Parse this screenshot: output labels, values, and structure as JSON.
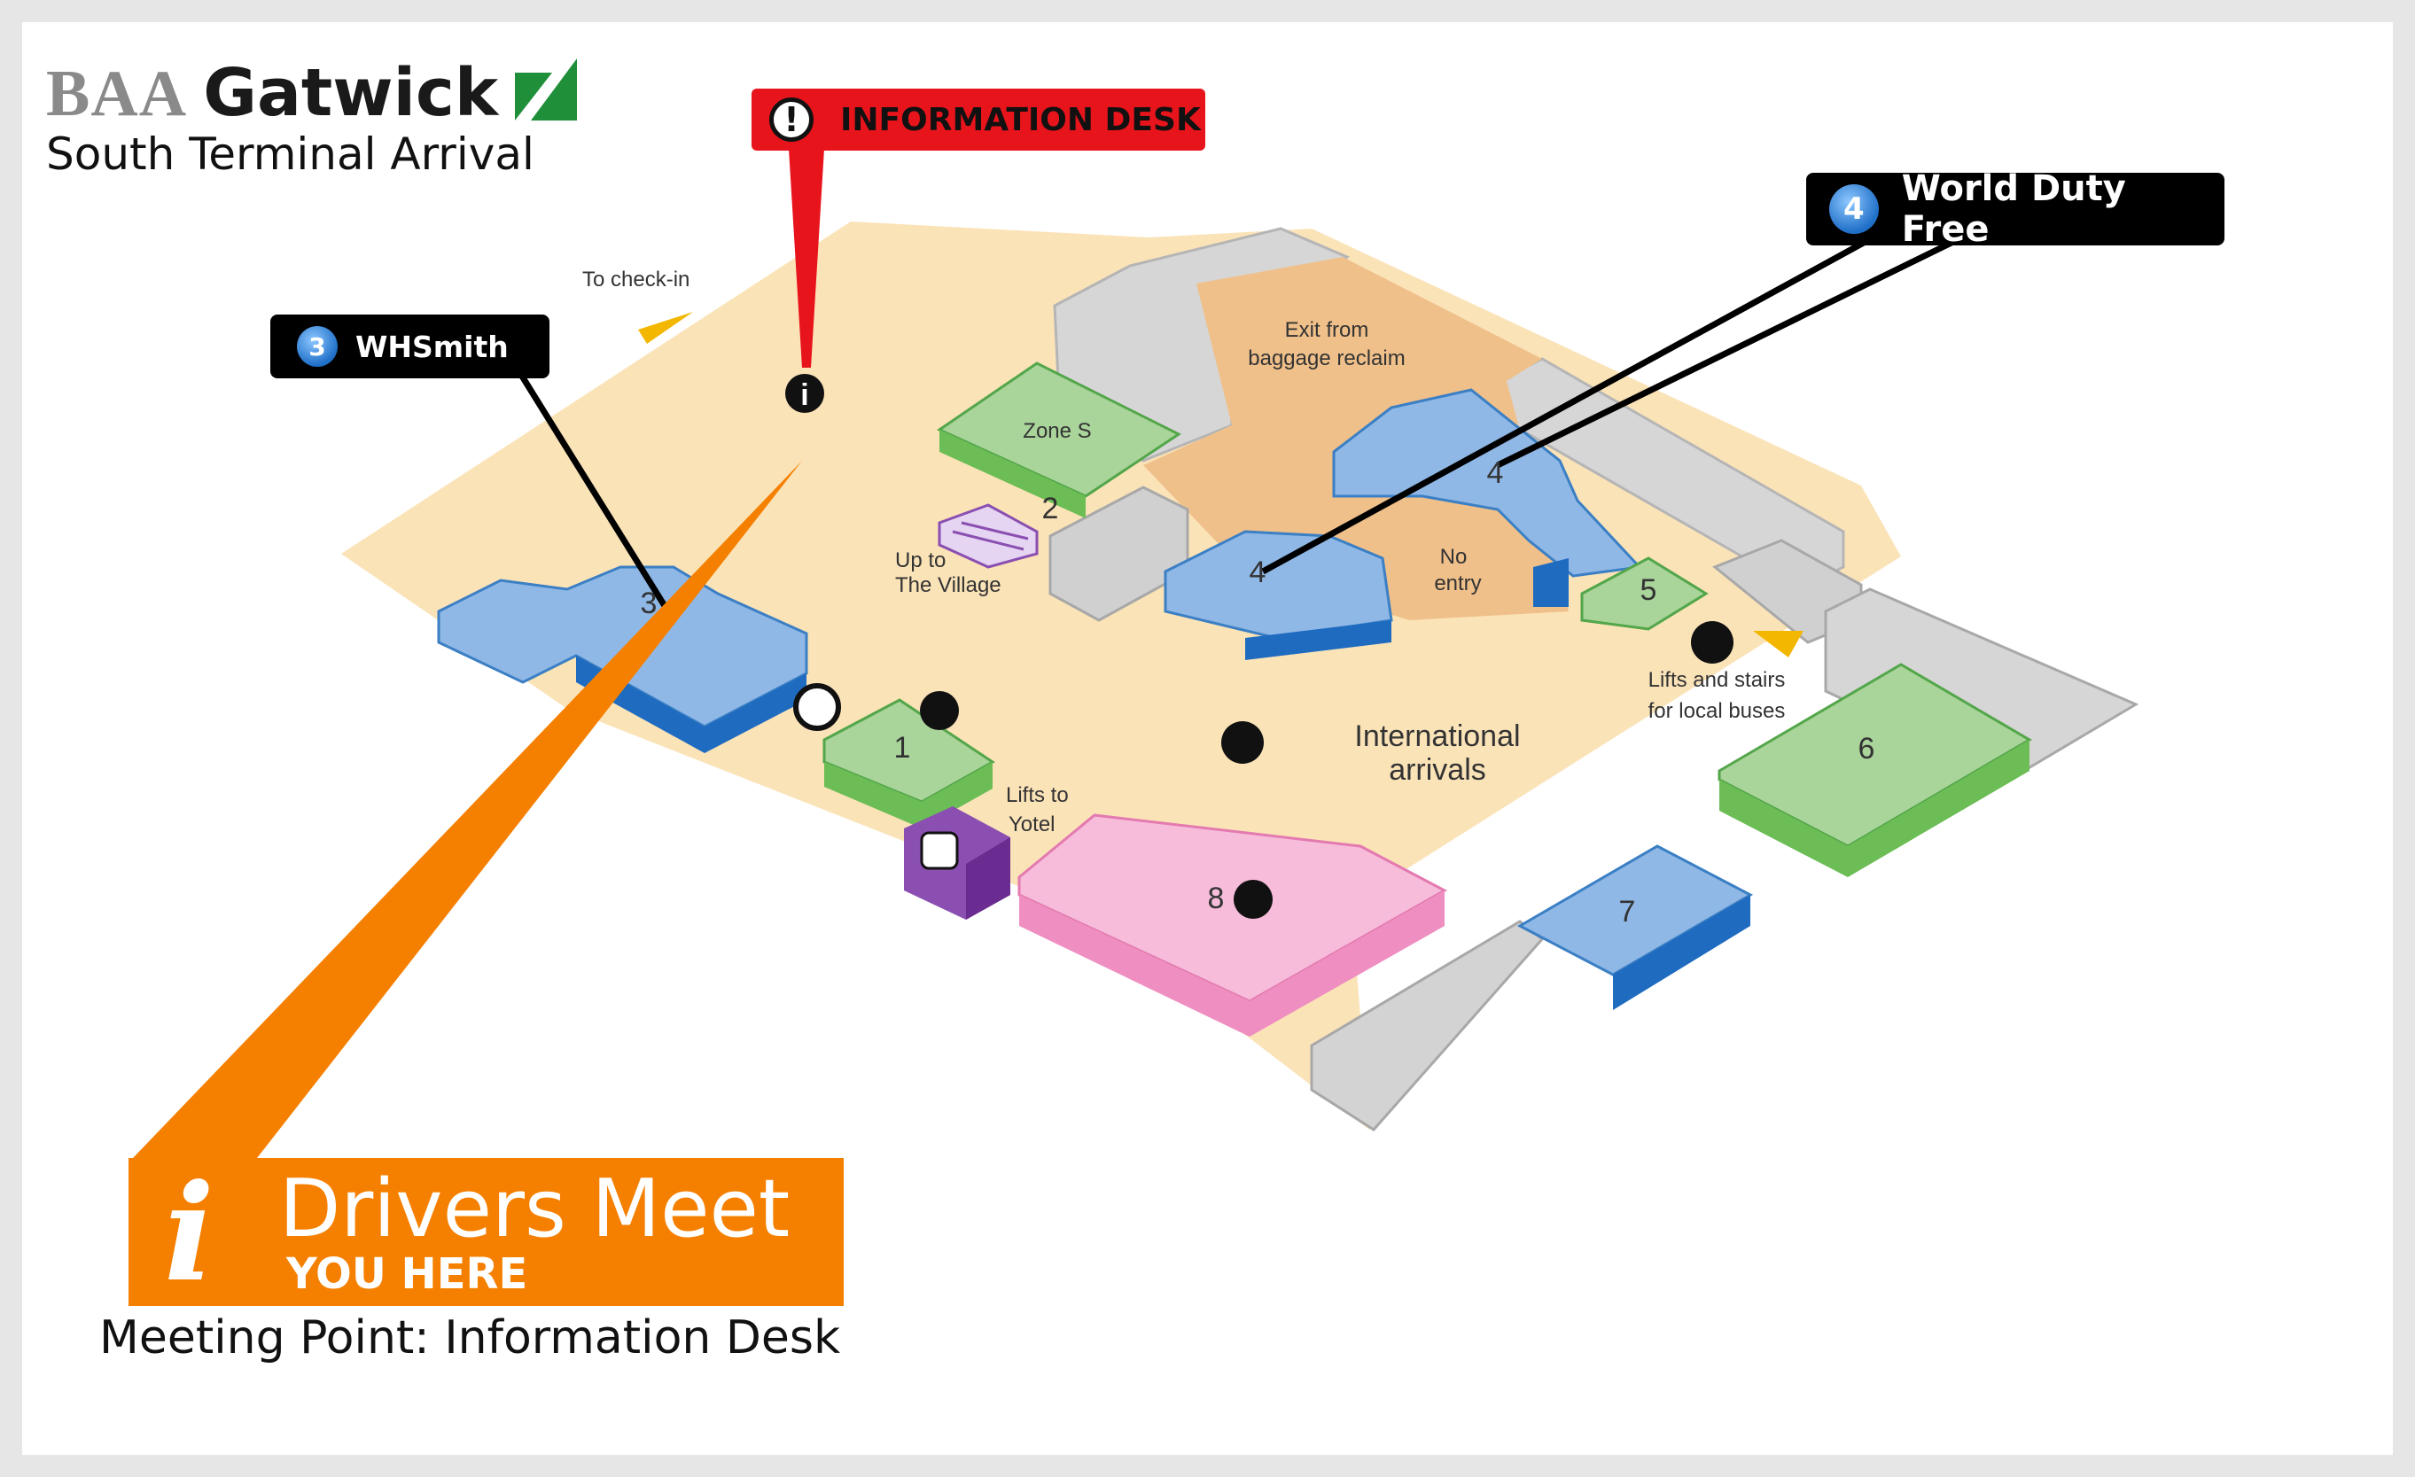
{
  "brand": {
    "baa": "BAA",
    "gatwick": "Gatwick",
    "subtitle": "South Terminal Arrival"
  },
  "information_desk": {
    "label": "INFORMATION DESK",
    "color": "#e8141c"
  },
  "callouts": {
    "whsmith": {
      "number": "3",
      "label": "WHSmith"
    },
    "world_duty_free": {
      "number": "4",
      "label": "World Duty Free"
    }
  },
  "map": {
    "to_checkin": "To check-in",
    "exit_line1": "Exit from",
    "exit_line2": "baggage reclaim",
    "zone": "Zone S",
    "up_village_1": "Up to",
    "up_village_2": "The Village",
    "no_entry_1": "No",
    "no_entry_2": "entry",
    "lifts_buses_1": "Lifts and stairs",
    "lifts_buses_2": "for local buses",
    "lifts_yotel_1": "Lifts to",
    "lifts_yotel_2": "Yotel",
    "intl_1": "International",
    "intl_2": "arrivals",
    "n1": "1",
    "n2": "2",
    "n3": "3",
    "n4a": "4",
    "n4b": "4",
    "n5": "5",
    "n6": "6",
    "n7": "7",
    "n8": "8"
  },
  "drivers_banner": {
    "line1": "Drivers Meet",
    "line2": "YOU HERE",
    "color": "#f58000"
  },
  "meeting_point": "Meeting Point: Information Desk",
  "colors": {
    "floor": "#fbe3b8",
    "blue": "#8fb8e6",
    "green": "#a9d49a",
    "pink": "#f6bcd9",
    "grey": "#d3d3d3",
    "reclaim": "#f0c08a",
    "purple": "#8a4fb0"
  },
  "icons": [
    "info-icon",
    "exclamation-icon",
    "info-italic-icon",
    "cafe-icon",
    "currency-icon",
    "restaurant-icon",
    "baggage-icon",
    "bus-icon",
    "stairs-icon",
    "lift-icon",
    "wheel-icon",
    "arrow-icon"
  ]
}
